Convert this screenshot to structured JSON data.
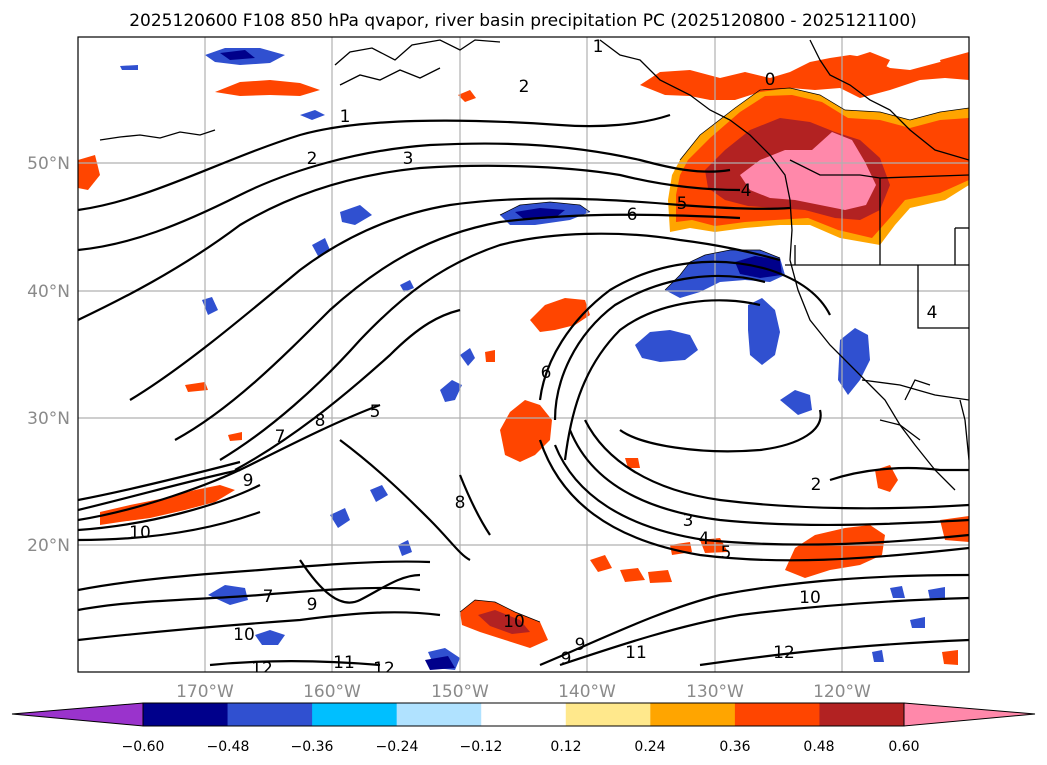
{
  "title": "2025120600 F108 850 hPa qvapor, river basin precipitation PC (2025120800 - 2025121100)",
  "map": {
    "lon_ticks": [
      "170°W",
      "160°W",
      "150°W",
      "140°W",
      "130°W",
      "120°W"
    ],
    "lat_ticks": [
      "50°N",
      "40°N",
      "30°N",
      "20°N"
    ],
    "gridlines": true
  },
  "colorbar": {
    "ticks": [
      "−0.60",
      "−0.48",
      "−0.36",
      "−0.24",
      "−0.12",
      "0.12",
      "0.24",
      "0.36",
      "0.48",
      "0.60"
    ],
    "colors": [
      "#9a33cc",
      "#00008b",
      "#3050d0",
      "#00bfff",
      "#b0e2ff",
      "#ffffff",
      "#ffe88c",
      "#ffa500",
      "#ff4500",
      "#b22222",
      "#ff88aa"
    ],
    "extend": "both"
  },
  "contour_labels": {
    "nw_1": "1",
    "nw_2": "2",
    "nw_2b": "2",
    "nw_3": "3",
    "ne_0": "0",
    "ne_1": "1",
    "c_5": "5",
    "c_6": "6",
    "c_4": "4",
    "w_7": "7",
    "w_8": "8",
    "w_5": "5",
    "w_9": "9",
    "w_10": "10",
    "w_8b": "8",
    "s_7": "7",
    "s_9": "9",
    "s_10": "10",
    "s_12": "12",
    "s_11": "11",
    "s_12b": "12",
    "low_6": "6",
    "low_2": "2",
    "low_3": "3",
    "low_4": "4",
    "low_5": "5",
    "se_10": "10",
    "se_12": "12",
    "se_11": "11",
    "se_9": "9",
    "se_9b": "9",
    "se_10b": "10",
    "e_4": "4"
  }
}
